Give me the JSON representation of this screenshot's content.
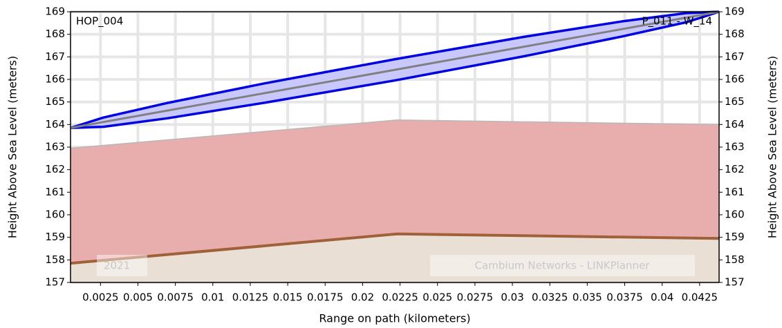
{
  "chart_data": {
    "type": "path_profile",
    "left_label": "HOP_004",
    "right_label": "P_011 - W_14",
    "watermark_year": "2021",
    "watermark_brand": "Cambium Networks - LINKPlanner",
    "xlabel": "Range on path (kilometers)",
    "ylabel": "Height Above Sea Level (meters)",
    "y2label": "Height Above Sea Level (meters)",
    "xlim": [
      0.0005,
      0.0438
    ],
    "xticks": [
      0.0025,
      0.005,
      0.0075,
      0.01,
      0.0125,
      0.015,
      0.0175,
      0.02,
      0.0225,
      0.025,
      0.0275,
      0.03,
      0.0325,
      0.035,
      0.0375,
      0.04,
      0.0425
    ],
    "ylim": [
      157,
      169
    ],
    "yticks": [
      157,
      158,
      159,
      160,
      161,
      162,
      163,
      164,
      165,
      166,
      167,
      168,
      169
    ],
    "y2lim": [
      157,
      169
    ],
    "y2ticks": [
      157,
      158,
      159,
      160,
      161,
      162,
      163,
      164,
      165,
      166,
      167,
      168,
      169
    ],
    "grid": true,
    "terrain": {
      "color": "#a0613a",
      "fill": "#e9dfd5",
      "x": [
        0.0005,
        0.0223,
        0.0438
      ],
      "values": [
        157.85,
        159.15,
        158.95
      ]
    },
    "clutter": {
      "color": "#b8b8b8",
      "fill": "#e8adad",
      "x": [
        0.0005,
        0.0223,
        0.0438
      ],
      "values": [
        162.95,
        164.2,
        164.0
      ]
    },
    "line_of_sight": {
      "color": "#808080",
      "x": [
        0.0005,
        0.0438
      ],
      "values": [
        163.85,
        169.0
      ]
    },
    "fresnel": {
      "color": "#0000e0",
      "fill": "#c8c8ff",
      "x": [
        0.0005,
        0.0027,
        0.007,
        0.0135,
        0.0222,
        0.0308,
        0.0373,
        0.0416,
        0.0438
      ],
      "upper": [
        163.85,
        164.31,
        164.96,
        165.83,
        166.9,
        167.89,
        168.57,
        168.94,
        169.0
      ],
      "lower": [
        163.85,
        163.9,
        164.28,
        164.97,
        165.96,
        167.03,
        167.9,
        168.53,
        169.0
      ]
    }
  }
}
